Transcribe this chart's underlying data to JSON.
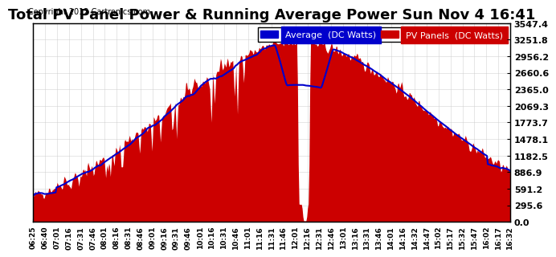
{
  "title": "Total PV Panel Power & Running Average Power Sun Nov 4 16:41",
  "copyright": "Copyright 2012 Cartronics.com",
  "legend_avg": "Average  (DC Watts)",
  "legend_pv": "PV Panels  (DC Watts)",
  "ylabel_right_ticks": [
    0.0,
    295.6,
    591.2,
    886.9,
    1182.5,
    1478.1,
    1773.7,
    2069.3,
    2365.0,
    2660.6,
    2956.2,
    3251.8,
    3547.4
  ],
  "ymax": 3547.4,
  "ymin": 0.0,
  "bg_color": "#ffffff",
  "plot_bg_color": "#ffffff",
  "grid_color": "#cccccc",
  "pv_fill_color": "#cc0000",
  "avg_line_color": "#0000cc",
  "title_fontsize": 13,
  "x_tick_labels": [
    "06:25",
    "06:40",
    "07:01",
    "07:16",
    "07:31",
    "07:46",
    "08:01",
    "08:16",
    "08:31",
    "08:46",
    "09:01",
    "09:16",
    "09:31",
    "09:46",
    "10:01",
    "10:16",
    "10:31",
    "10:46",
    "11:01",
    "11:16",
    "11:31",
    "11:46",
    "12:01",
    "12:16",
    "12:31",
    "12:46",
    "13:01",
    "13:16",
    "13:31",
    "13:46",
    "14:01",
    "14:16",
    "14:32",
    "14:47",
    "15:02",
    "15:17",
    "15:32",
    "15:47",
    "16:02",
    "16:17",
    "16:32"
  ]
}
